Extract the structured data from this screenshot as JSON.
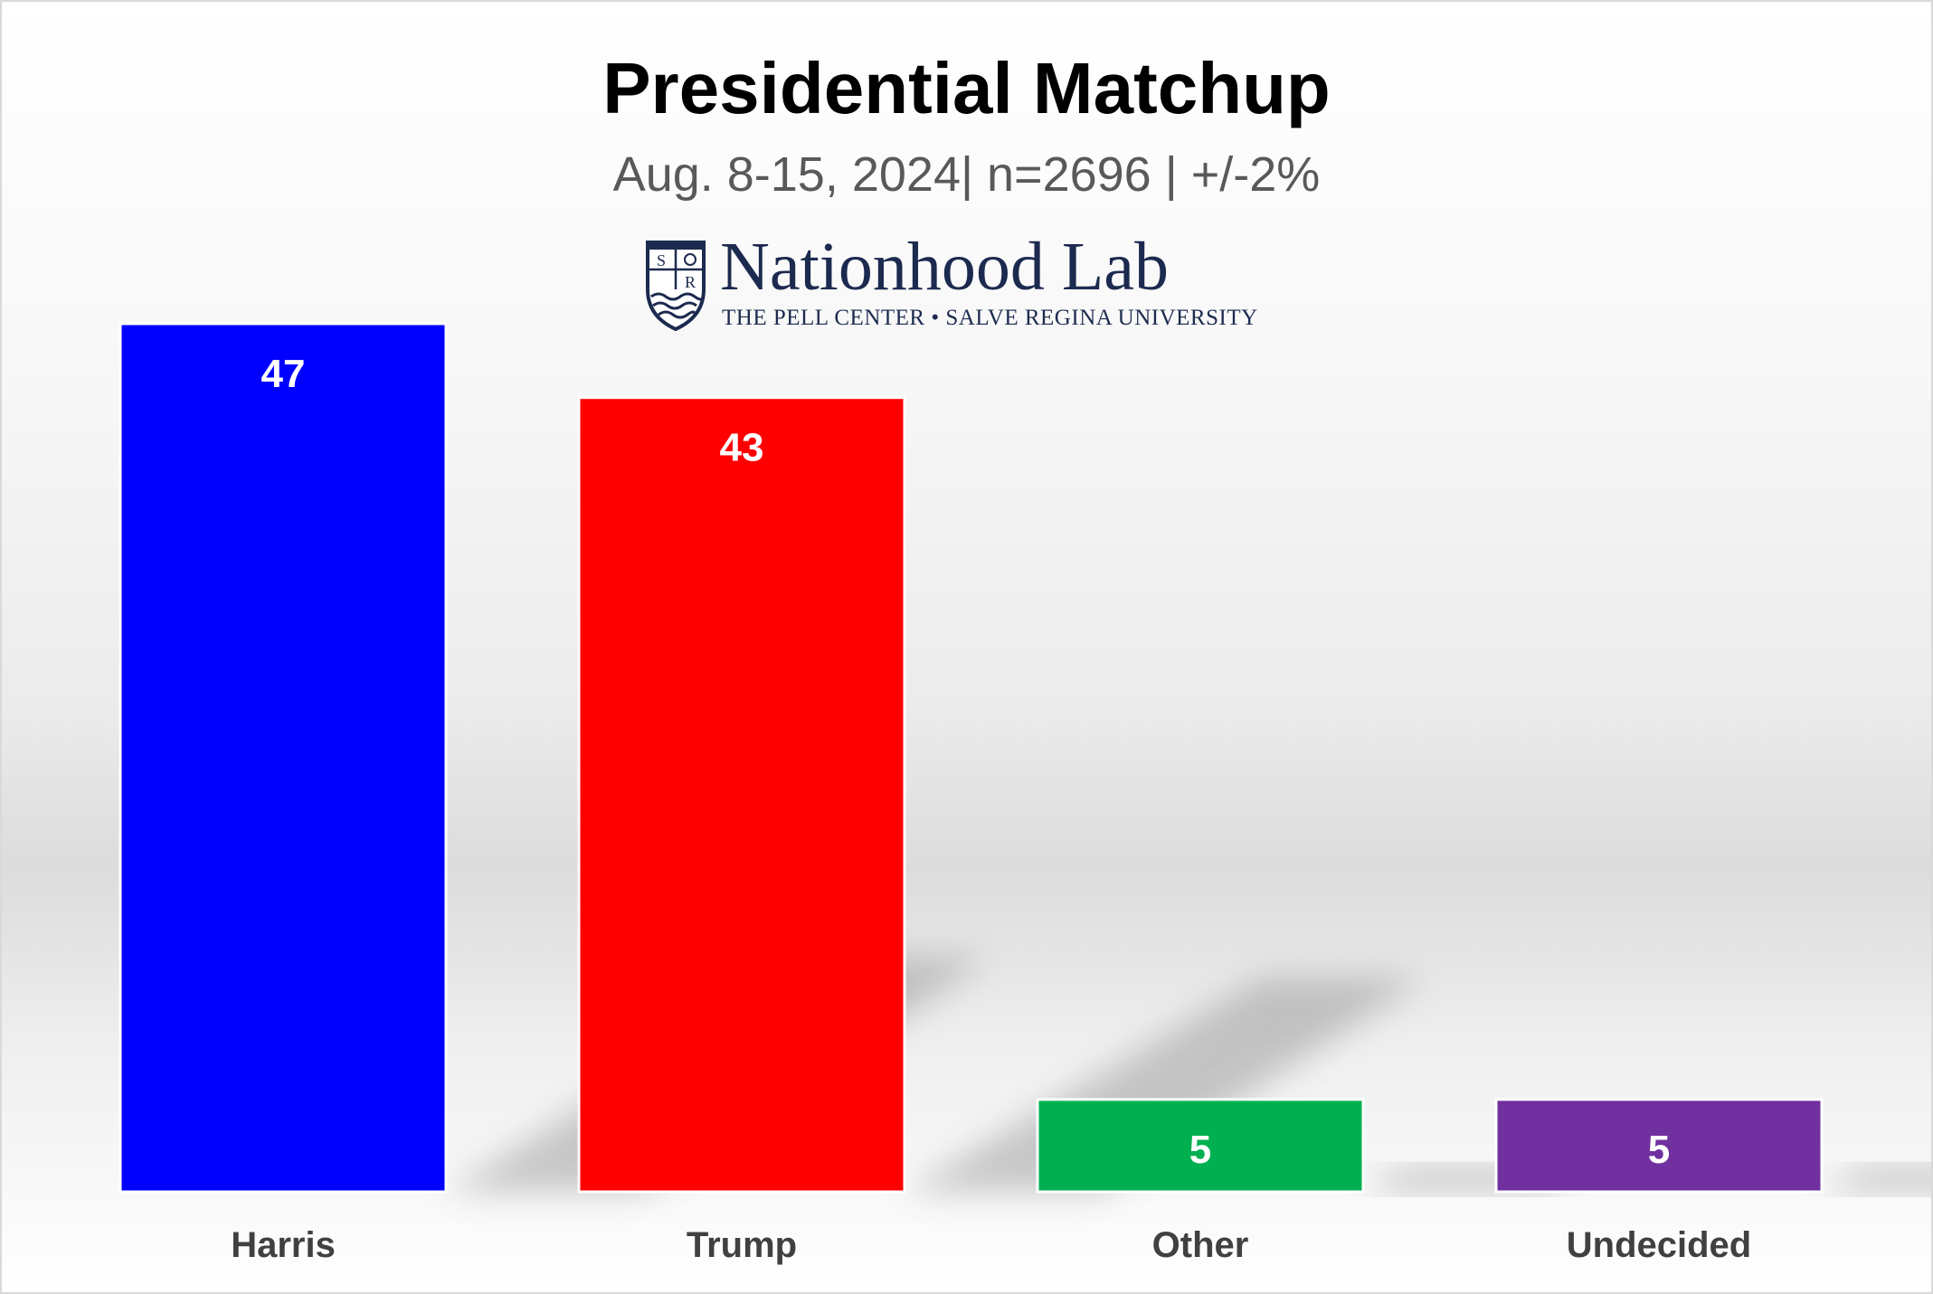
{
  "chart_data": {
    "type": "bar",
    "title": "Presidential Matchup",
    "subtitle": "Aug. 8-15, 2024| n=2696 | +/-2%",
    "categories": [
      "Harris",
      "Trump",
      "Other",
      "Undecided"
    ],
    "values": [
      47,
      43,
      5,
      5
    ],
    "colors": [
      "#0000ff",
      "#ff0000",
      "#00b050",
      "#7030a0"
    ],
    "data_labels": [
      "47",
      "43",
      "5",
      "5"
    ],
    "xlabel": "",
    "ylabel": "",
    "ylim": [
      0,
      47
    ],
    "grid": false,
    "legend": "none"
  },
  "logo": {
    "name": "Nationhood Lab",
    "tagline": "THE PELL CENTER • SALVE REGINA UNIVERSITY",
    "shield_letters": [
      "S",
      "R"
    ],
    "icon": "university-shield-icon"
  },
  "colors": {
    "title": "#000000",
    "subtitle": "#595959",
    "logo_navy": "#1c2a4f",
    "axis_label": "#404040",
    "bar_label": "#ffffff"
  }
}
